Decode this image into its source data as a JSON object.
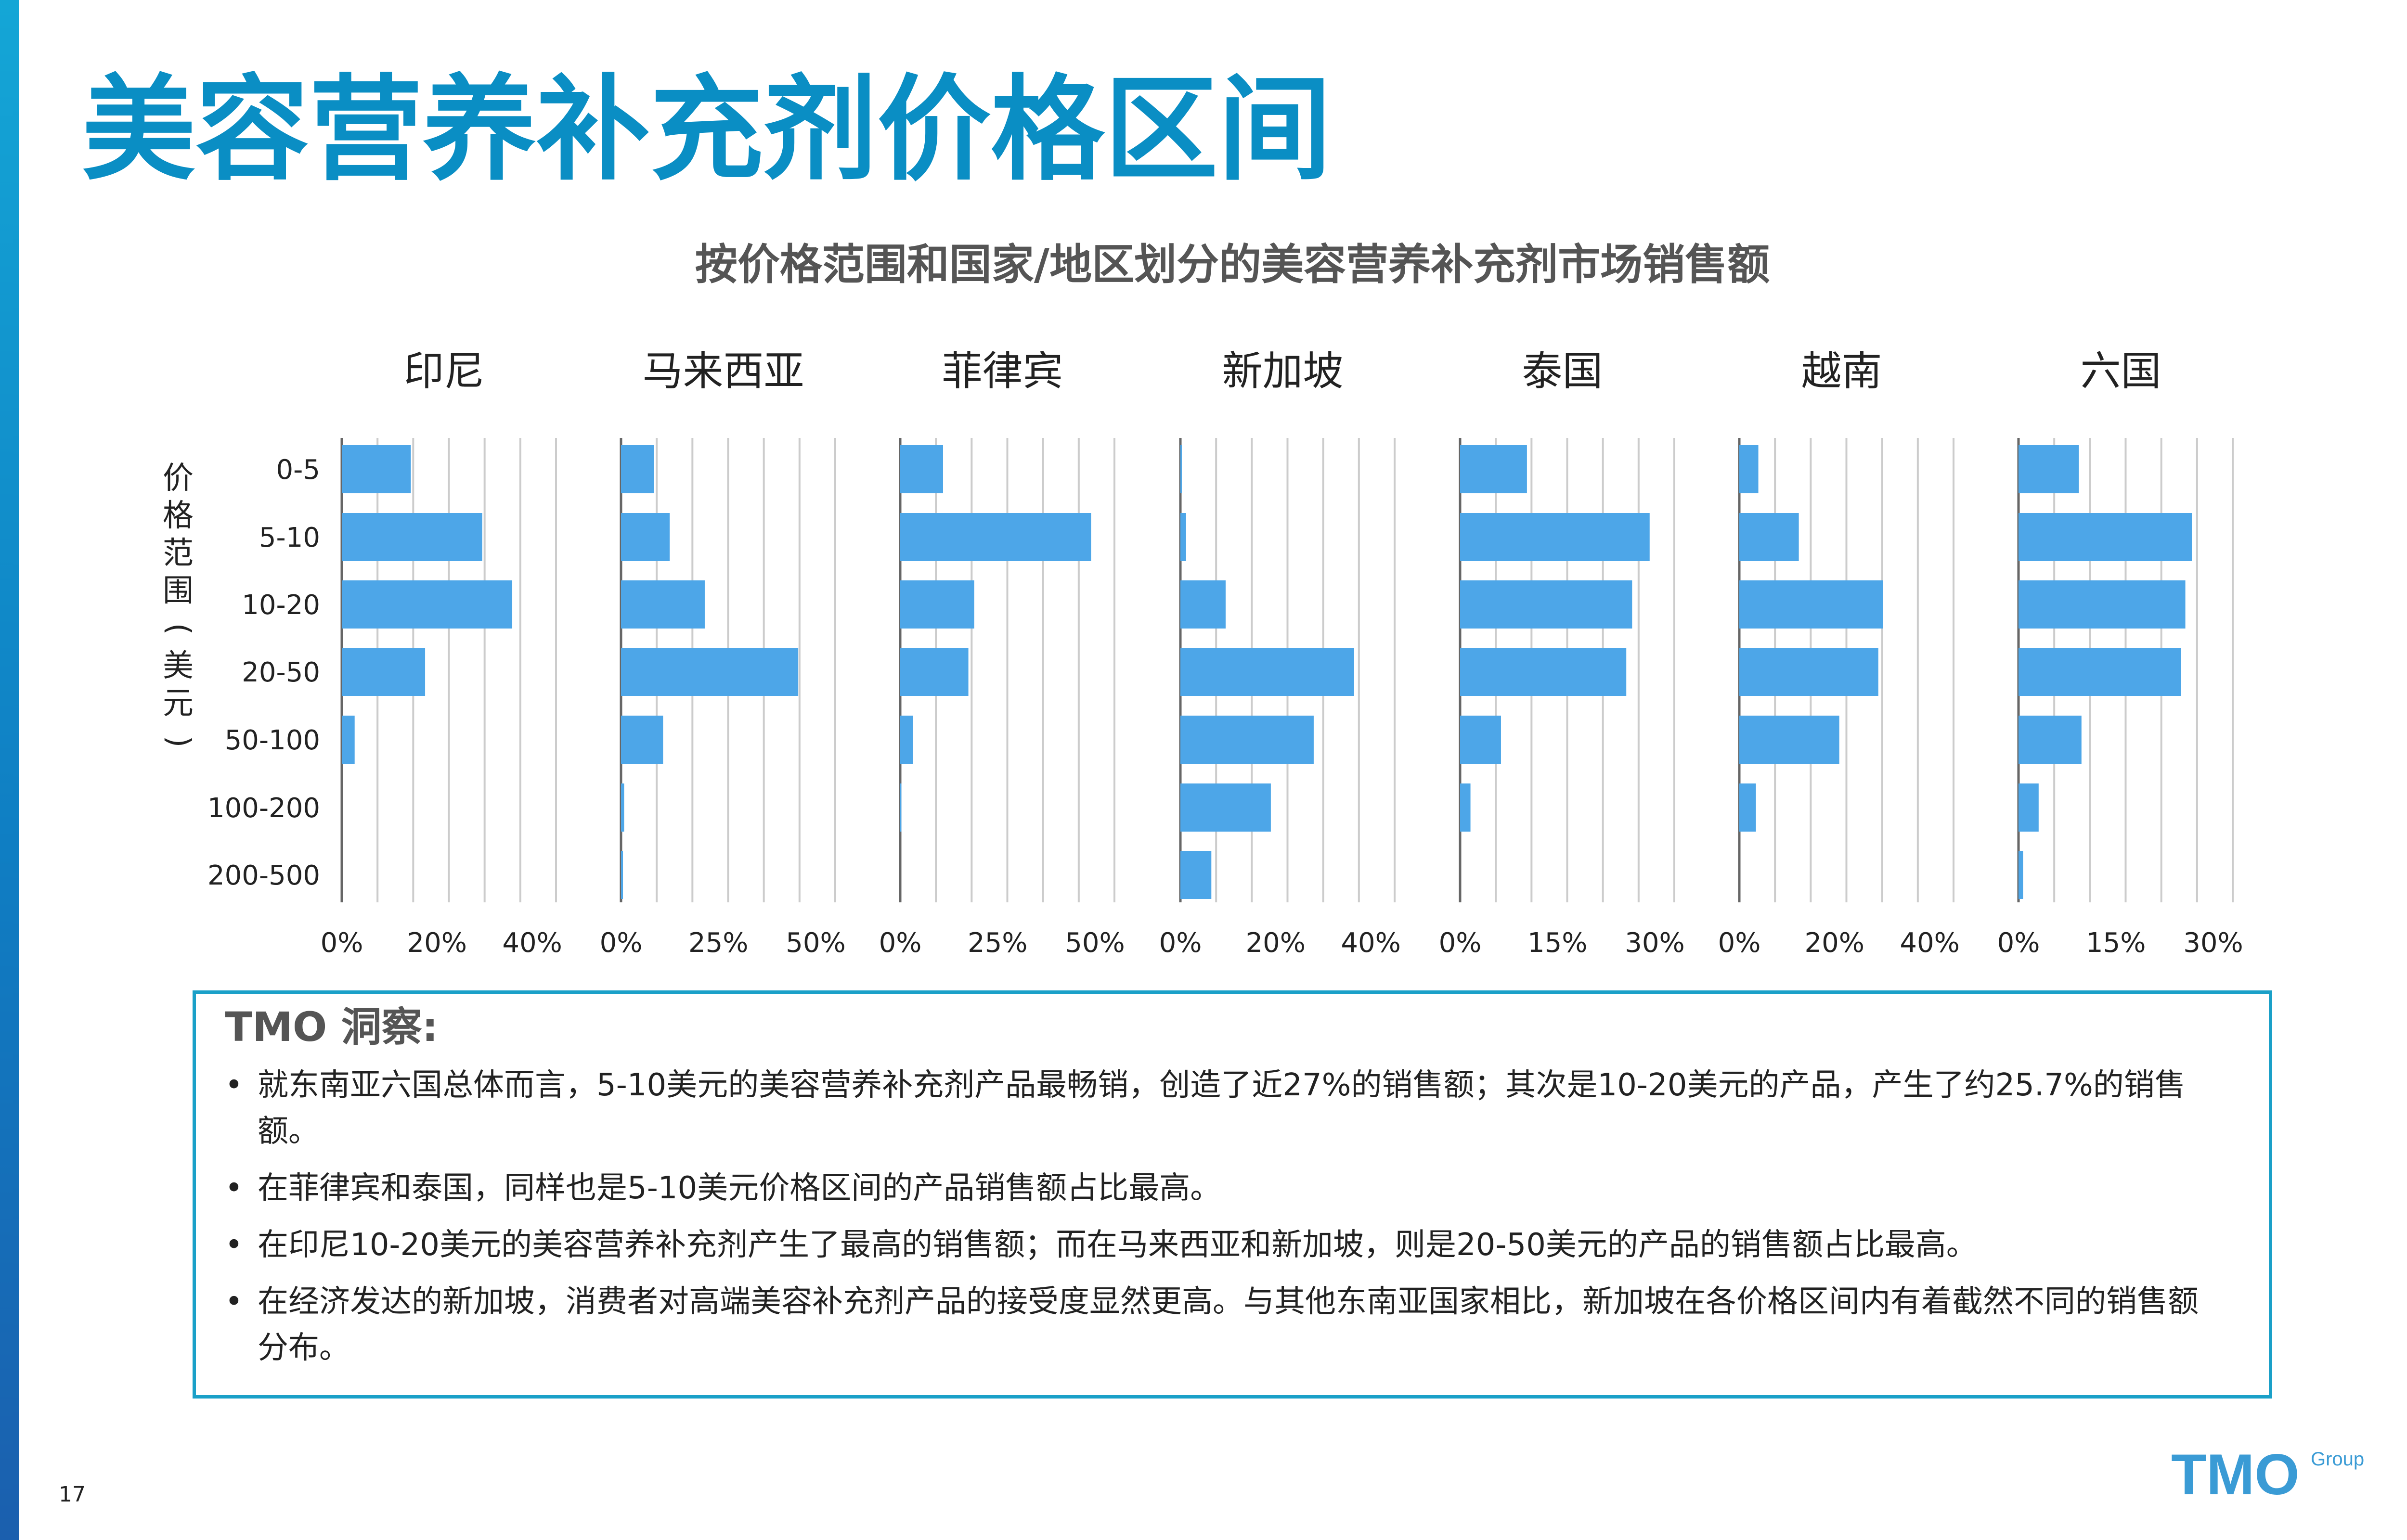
{
  "title": "美容营养补充剂价格区间",
  "chart_title": "按价格范围和国家/地区划分的美容营养补充剂市场销售额",
  "y_axis_label": "价格范围(美元)",
  "colors": {
    "bar": "#4da6e8",
    "title": "#0a8ec4",
    "box_border": "#1aa0c8",
    "grid": "#cccccc",
    "axis": "#666666"
  },
  "chart_data": [
    {
      "type": "bar",
      "orientation": "horizontal",
      "title": "印尼",
      "categories": [
        "0-5",
        "5-10",
        "10-20",
        "20-50",
        "50-100",
        "100-200",
        "200-500"
      ],
      "values": [
        14.5,
        29.5,
        35.8,
        17.5,
        2.7,
        0,
        0
      ],
      "xlim": [
        0,
        45
      ],
      "ticks": [
        0,
        20,
        40
      ],
      "tick_labels": [
        "0%",
        "20%",
        "40%"
      ],
      "grid": true
    },
    {
      "type": "bar",
      "orientation": "horizontal",
      "title": "马来西亚",
      "categories": [
        "0-5",
        "5-10",
        "10-20",
        "20-50",
        "50-100",
        "100-200",
        "200-500"
      ],
      "values": [
        8.5,
        12.5,
        21.5,
        45.5,
        10.8,
        0.8,
        0.5
      ],
      "xlim": [
        0,
        55
      ],
      "ticks": [
        0,
        25,
        50
      ],
      "tick_labels": [
        "0%",
        "25%",
        "50%"
      ],
      "grid": true
    },
    {
      "type": "bar",
      "orientation": "horizontal",
      "title": "菲律宾",
      "categories": [
        "0-5",
        "5-10",
        "10-20",
        "20-50",
        "50-100",
        "100-200",
        "200-500"
      ],
      "values": [
        11,
        49,
        19,
        17.5,
        3.3,
        0.3,
        0
      ],
      "xlim": [
        0,
        55
      ],
      "ticks": [
        0,
        25,
        50
      ],
      "tick_labels": [
        "0%",
        "25%",
        "50%"
      ],
      "grid": true
    },
    {
      "type": "bar",
      "orientation": "horizontal",
      "title": "新加坡",
      "categories": [
        "0-5",
        "5-10",
        "10-20",
        "20-50",
        "50-100",
        "100-200",
        "200-500"
      ],
      "values": [
        0.3,
        1.2,
        9.5,
        36.5,
        28,
        19,
        6.5
      ],
      "xlim": [
        0,
        45
      ],
      "ticks": [
        0,
        20,
        40
      ],
      "tick_labels": [
        "0%",
        "20%",
        "40%"
      ],
      "grid": true
    },
    {
      "type": "bar",
      "orientation": "horizontal",
      "title": "泰国",
      "categories": [
        "0-5",
        "5-10",
        "10-20",
        "20-50",
        "50-100",
        "100-200",
        "200-500"
      ],
      "values": [
        10.3,
        29.2,
        26.5,
        25.6,
        6.3,
        1.6,
        0
      ],
      "xlim": [
        0,
        33
      ],
      "ticks": [
        0,
        15,
        30
      ],
      "tick_labels": [
        "0%",
        "15%",
        "30%"
      ],
      "grid": true
    },
    {
      "type": "bar",
      "orientation": "horizontal",
      "title": "越南",
      "categories": [
        "0-5",
        "5-10",
        "10-20",
        "20-50",
        "50-100",
        "100-200",
        "200-500"
      ],
      "values": [
        4,
        12.5,
        30.2,
        29.2,
        21,
        3.5,
        0
      ],
      "xlim": [
        0,
        45
      ],
      "ticks": [
        0,
        20,
        40
      ],
      "tick_labels": [
        "0%",
        "20%",
        "40%"
      ],
      "grid": true
    },
    {
      "type": "bar",
      "orientation": "horizontal",
      "title": "六国",
      "categories": [
        "0-5",
        "5-10",
        "10-20",
        "20-50",
        "50-100",
        "100-200",
        "200-500"
      ],
      "values": [
        9.3,
        26.7,
        25.7,
        25,
        9.7,
        3.1,
        0.7
      ],
      "xlim": [
        0,
        33
      ],
      "ticks": [
        0,
        15,
        30
      ],
      "tick_labels": [
        "0%",
        "15%",
        "30%"
      ],
      "grid": true
    }
  ],
  "insights": {
    "heading": "TMO 洞察:",
    "items": [
      "就东南亚六国总体而言，5-10美元的美容营养补充剂产品最畅销，创造了近27%的销售额；其次是10-20美元的产品，产生了约25.7%的销售额。",
      "在菲律宾和泰国，同样也是5-10美元价格区间的产品销售额占比最高。",
      "在印尼10-20美元的美容营养补充剂产生了最高的销售额；而在马来西亚和新加坡，则是20-50美元的产品的销售额占比最高。",
      "在经济发达的新加坡，消费者对高端美容补充剂产品的接受度显然更高。与其他东南亚国家相比，新加坡在各价格区间内有着截然不同的销售额分布。"
    ]
  },
  "page_number": "17",
  "logo": {
    "wordmark": "TMO",
    "sub": "Group"
  }
}
